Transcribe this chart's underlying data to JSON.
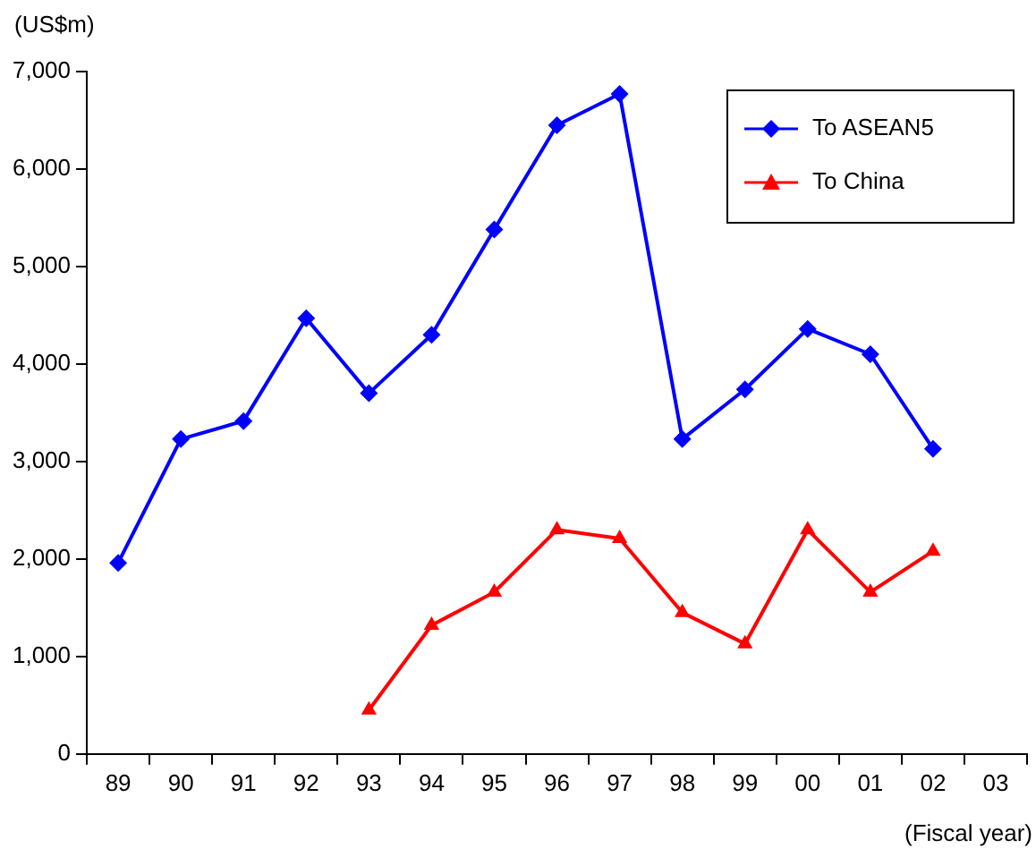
{
  "chart_data": {
    "type": "line",
    "ylabel": "(US$m)",
    "xlabel": "(Fiscal year)",
    "categories": [
      "89",
      "90",
      "91",
      "92",
      "93",
      "94",
      "95",
      "96",
      "97",
      "98",
      "99",
      "00",
      "01",
      "02",
      "03"
    ],
    "series": [
      {
        "name": "To ASEAN5",
        "color": "#0000ff",
        "marker": "diamond",
        "values": [
          1960,
          3230,
          3415,
          4470,
          3700,
          4300,
          5380,
          6450,
          6770,
          3230,
          3740,
          4360,
          4100,
          3130,
          null
        ]
      },
      {
        "name": "To China",
        "color": "#ff0000",
        "marker": "triangle",
        "values": [
          null,
          null,
          null,
          null,
          450,
          1320,
          1660,
          2300,
          2210,
          1450,
          1130,
          2300,
          1660,
          2080,
          null
        ]
      }
    ],
    "ylim": [
      0,
      7000
    ],
    "yticks": [
      {
        "value": 0,
        "label": "0"
      },
      {
        "value": 1000,
        "label": "1,000"
      },
      {
        "value": 2000,
        "label": "2,000"
      },
      {
        "value": 3000,
        "label": "3,000"
      },
      {
        "value": 4000,
        "label": "4,000"
      },
      {
        "value": 5000,
        "label": "5,000"
      },
      {
        "value": 6000,
        "label": "6,000"
      },
      {
        "value": 7000,
        "label": "7,000"
      }
    ],
    "grid": false,
    "legend": "top right",
    "line_style": "solid"
  }
}
